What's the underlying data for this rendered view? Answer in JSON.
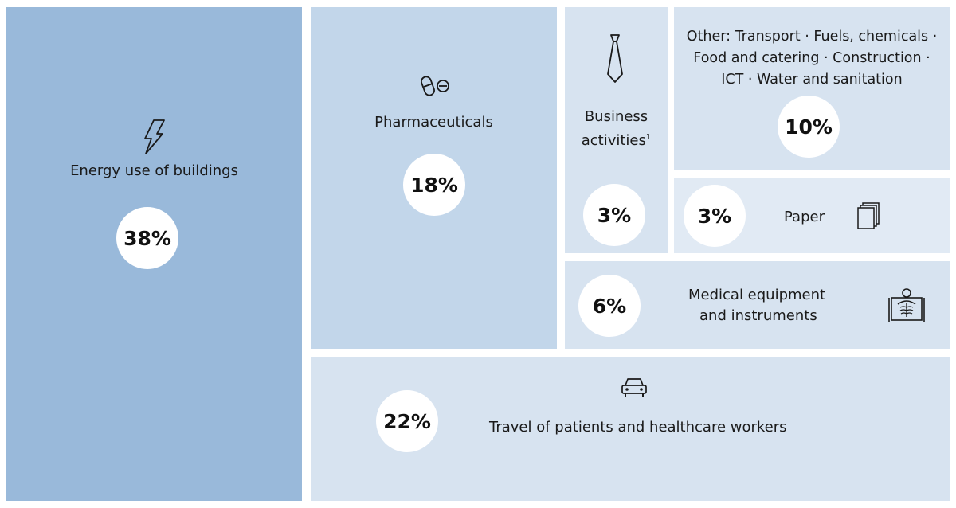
{
  "chart_data": {
    "type": "treemap",
    "colors": {
      "energy": "#99b9da",
      "pharma": "#c2d6ea",
      "light": "#d7e3f0",
      "paper": "#e1eaf4",
      "white": "#ffffff"
    },
    "tiles": [
      {
        "key": "energy",
        "label": "Energy use of buildings",
        "value": 38,
        "value_label": "38%",
        "icon": "lightning-bolt-icon"
      },
      {
        "key": "pharma",
        "label": "Pharmaceuticals",
        "value": 18,
        "value_label": "18%",
        "icon": "pills-icon"
      },
      {
        "key": "business",
        "label_line1": "Business",
        "label_line2": "activities",
        "footnote": "1",
        "value": 3,
        "value_label": "3%",
        "icon": "necktie-icon"
      },
      {
        "key": "other",
        "label_line1": "Other: Transport · Fuels, chemicals ·",
        "label_line2": "Food and catering · Construction ·",
        "label_line3": "ICT · Water and sanitation",
        "value": 10,
        "value_label": "10%"
      },
      {
        "key": "paper",
        "label": "Paper",
        "value": 3,
        "value_label": "3%",
        "icon": "paper-stack-icon"
      },
      {
        "key": "medical",
        "label_line1": "Medical equipment",
        "label_line2": "and instruments",
        "value": 6,
        "value_label": "6%",
        "icon": "xray-icon"
      },
      {
        "key": "travel",
        "label": "Travel of patients and healthcare workers",
        "value": 22,
        "value_label": "22%",
        "icon": "car-icon"
      }
    ]
  }
}
